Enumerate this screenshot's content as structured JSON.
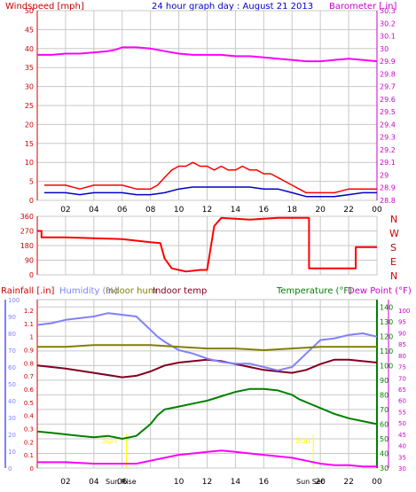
{
  "chart_data": [
    {
      "type": "line",
      "title": "24 hour graph day : August 21 2013",
      "left_axis_label": "Windspeed [mph]",
      "right_axis_label": "Barometer [.in]",
      "x_ticks": [
        "02",
        "04",
        "06",
        "08",
        "10",
        "12",
        "14",
        "16",
        "18",
        "20",
        "22",
        "00"
      ],
      "left_ticks": [
        "0",
        "5",
        "10",
        "15",
        "20",
        "25",
        "30",
        "35",
        "40",
        "45",
        "50"
      ],
      "right_ticks": [
        "28.8",
        "28.9",
        "29",
        "29.1",
        "29.2",
        "29.3",
        "29.4",
        "29.5",
        "29.6",
        "29.7",
        "29.8",
        "29.9",
        "30",
        "30.1",
        "30.2",
        "30.3"
      ],
      "ylim_left": [
        0,
        50
      ],
      "ylim_right": [
        28.8,
        30.3
      ],
      "grid": true,
      "series": [
        {
          "name": "Windspeed",
          "axis": "left",
          "color": "#ff0000",
          "x": [
            0.5,
            1,
            2,
            3,
            4,
            5,
            6,
            7,
            8,
            8.5,
            9,
            9.5,
            10,
            10.5,
            11,
            11.5,
            12,
            12.5,
            13,
            13.5,
            14,
            14.5,
            15,
            15.5,
            16,
            16.5,
            17,
            17.5,
            18,
            18.5,
            19,
            20,
            21,
            22,
            23,
            24
          ],
          "y": [
            4,
            4,
            4,
            3,
            4,
            4,
            4,
            3,
            3,
            4,
            6,
            8,
            9,
            9,
            10,
            9,
            9,
            8,
            9,
            8,
            8,
            9,
            8,
            8,
            7,
            7,
            6,
            5,
            4,
            3,
            2,
            2,
            2,
            3,
            3,
            3
          ]
        },
        {
          "name": "Wind gust",
          "axis": "left",
          "color": "#0000cc",
          "x": [
            0.5,
            1,
            2,
            3,
            4,
            5,
            6,
            7,
            8,
            9,
            10,
            11,
            12,
            13,
            14,
            15,
            16,
            17,
            18,
            19,
            20,
            21,
            22,
            23,
            24
          ],
          "y": [
            2,
            2,
            2,
            1.5,
            2,
            2,
            2,
            1.5,
            1.5,
            2,
            3,
            3.5,
            3.5,
            3.5,
            3.5,
            3.5,
            3,
            3,
            2,
            1,
            1,
            1,
            1.5,
            2,
            2
          ]
        },
        {
          "name": "Barometer",
          "axis": "right",
          "color": "#ff00ff",
          "x": [
            0,
            1,
            2,
            3,
            4,
            5,
            5.5,
            6,
            7,
            8,
            9,
            10,
            11,
            12,
            13,
            14,
            15,
            16,
            17,
            18,
            19,
            20,
            21,
            22,
            23,
            24
          ],
          "y": [
            29.95,
            29.95,
            29.96,
            29.96,
            29.97,
            29.98,
            29.99,
            30.01,
            30.01,
            30.0,
            29.98,
            29.96,
            29.95,
            29.95,
            29.95,
            29.94,
            29.94,
            29.93,
            29.92,
            29.91,
            29.9,
            29.9,
            29.91,
            29.92,
            29.91,
            29.9
          ]
        }
      ]
    },
    {
      "type": "line",
      "right_axis_labels": [
        "N",
        "W",
        "S",
        "E",
        "N"
      ],
      "left_ticks": [
        "0",
        "90",
        "180",
        "270",
        "360"
      ],
      "ylim": [
        0,
        360
      ],
      "series": [
        {
          "name": "Wind direction",
          "color": "#ff0000",
          "x": [
            0,
            0.3,
            0.3,
            2,
            4,
            6,
            7,
            8,
            8.7,
            9,
            9.5,
            10,
            10.5,
            11,
            11.5,
            12,
            12.5,
            13,
            14,
            15,
            16,
            17,
            18,
            19,
            19.2,
            19.2,
            20,
            21,
            22,
            22.5,
            22.5,
            23,
            24
          ],
          "y": [
            270,
            270,
            230,
            230,
            225,
            220,
            210,
            200,
            195,
            100,
            40,
            30,
            20,
            25,
            30,
            30,
            300,
            350,
            345,
            340,
            345,
            350,
            350,
            350,
            350,
            40,
            40,
            40,
            40,
            40,
            170,
            170,
            170
          ]
        }
      ]
    },
    {
      "type": "line",
      "labels": [
        "Rainfall [.in]",
        "Humidity (%)",
        "Indoor hum",
        "Indoor temp",
        "Temperature (°F)",
        "Dew Point (°F)"
      ],
      "left_ticks_rain": [
        "0",
        "0.1",
        "0.2",
        "0.3",
        "0.4",
        "0.5",
        "0.6",
        "0.7",
        "0.8",
        "0.9",
        "1",
        "1.1",
        "1.2"
      ],
      "left_ticks_humidity": [
        "0",
        "10",
        "20",
        "30",
        "40",
        "50",
        "60",
        "70",
        "80",
        "90",
        "100"
      ],
      "right_ticks_temp": [
        "30",
        "40",
        "50",
        "60",
        "70",
        "80",
        "90",
        "100",
        "110",
        "120",
        "130",
        "140"
      ],
      "right_ticks_dew": [
        "30",
        "35",
        "40",
        "45",
        "50",
        "55",
        "60",
        "65",
        "70",
        "75",
        "80",
        "85",
        "90",
        "95",
        "100"
      ],
      "annotations": [
        "Sun",
        "Sun Rise",
        "Sun Set"
      ],
      "ylim_temp": [
        30,
        145
      ],
      "series": [
        {
          "name": "Indoor temp",
          "color": "#800020",
          "x": [
            0,
            2,
            4,
            6,
            7,
            8,
            9,
            10,
            11,
            12,
            13,
            14,
            15,
            16,
            17,
            18,
            19,
            20,
            21,
            22,
            23,
            24
          ],
          "y": [
            100,
            98,
            95,
            92,
            93,
            96,
            100,
            102,
            103,
            104,
            103,
            101,
            99,
            97,
            96,
            95,
            97,
            101,
            104,
            104,
            103,
            102
          ]
        },
        {
          "name": "Humidity",
          "color": "#8080ff",
          "x": [
            0,
            1,
            2,
            3,
            4,
            5,
            6,
            7,
            8,
            8.5,
            9,
            10,
            11,
            12,
            13,
            14,
            15,
            16,
            17,
            18,
            19,
            19.5,
            20,
            21,
            22,
            23,
            24
          ],
          "y": [
            85,
            86,
            88,
            89,
            90,
            92,
            91,
            90,
            82,
            78,
            75,
            70,
            68,
            65,
            63,
            62,
            62,
            60,
            58,
            60,
            68,
            72,
            76,
            77,
            79,
            80,
            78
          ]
        },
        {
          "name": "Indoor hum",
          "color": "#808000",
          "x": [
            0,
            2,
            4,
            6,
            8,
            10,
            12,
            14,
            16,
            18,
            20,
            22,
            24
          ],
          "y": [
            72,
            72,
            73,
            73,
            73,
            72,
            71,
            71,
            70,
            71,
            72,
            72,
            72
          ]
        },
        {
          "name": "Temperature",
          "color": "#008000",
          "x": [
            0,
            1,
            2,
            3,
            4,
            5,
            6,
            7,
            8,
            8.5,
            9,
            10,
            11,
            12,
            13,
            14,
            15,
            16,
            17,
            18,
            18.5,
            19,
            20,
            21,
            22,
            23,
            24
          ],
          "y": [
            55,
            54,
            53,
            52,
            51,
            52,
            50,
            52,
            60,
            66,
            70,
            72,
            74,
            76,
            79,
            82,
            84,
            84,
            83,
            80,
            77,
            75,
            71,
            67,
            64,
            62,
            60
          ]
        },
        {
          "name": "Dew Point",
          "color": "#ff00ff",
          "x": [
            0,
            2,
            4,
            6,
            7,
            8,
            9,
            10,
            11,
            12,
            13,
            14,
            15,
            16,
            17,
            18,
            19,
            20,
            21,
            22,
            23,
            24
          ],
          "y": [
            34,
            34,
            33,
            33,
            33,
            35,
            37,
            39,
            40,
            41,
            42,
            41,
            40,
            39,
            38,
            37,
            35,
            33,
            32,
            32,
            31,
            31
          ]
        }
      ]
    }
  ]
}
